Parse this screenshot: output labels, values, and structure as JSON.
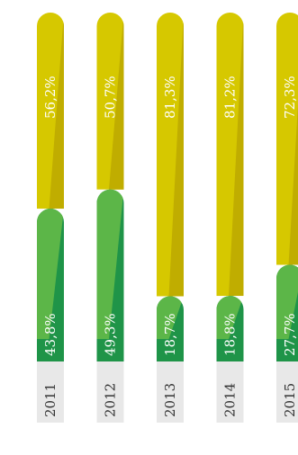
{
  "chart_data": {
    "type": "bar",
    "stacked": true,
    "orientation": "vertical",
    "value_format": "percent, decimal comma, one decimal",
    "categories": [
      "2011",
      "2012",
      "2013",
      "2014",
      "2015"
    ],
    "series": [
      {
        "values": [
          43.8,
          49.3,
          18.7,
          18.8,
          27.7
        ],
        "color": "#1f9448",
        "highlight": "#5cb648"
      },
      {
        "values": [
          56.2,
          50.7,
          81.3,
          81.2,
          72.3
        ],
        "color": "#d6c800",
        "highlight": "#c0ad00"
      }
    ],
    "data_labels": [
      [
        "43,8%",
        "49,3%",
        "18,7%",
        "18,8%",
        "27,7%"
      ],
      [
        "56,2%",
        "50,7%",
        "81,3%",
        "81,2%",
        "72,3%"
      ]
    ],
    "ylim": [
      0,
      100
    ],
    "label_rotation": "vertical, reading bottom-to-top",
    "grid": false,
    "legend": false
  }
}
